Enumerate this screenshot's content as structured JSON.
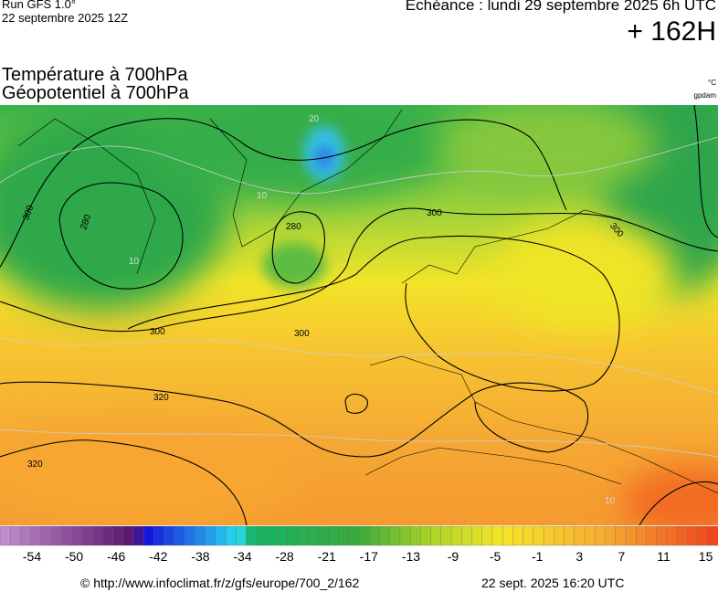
{
  "header": {
    "run": "Run GFS 1.0°",
    "date": "22 septembre 2025 12Z",
    "valid": "Echéance : lundi 29 septembre 2025 6h UTC",
    "lead": "+ 162H"
  },
  "titles": [
    "Température à 700hPa",
    "Géopotentiel à 700hPa"
  ],
  "units": [
    "°C",
    "gpdam"
  ],
  "map": {
    "contour_labels": [
      "300",
      "280",
      "280",
      "300",
      "300",
      "300",
      "300",
      "320",
      "320",
      "20",
      "10",
      "10",
      "10"
    ]
  },
  "colorbar": {
    "labels": [
      "-54",
      "-50",
      "-46",
      "-42",
      "-38",
      "-34",
      "-28",
      "-21",
      "-17",
      "-13",
      "-9",
      "-5",
      "-1",
      "3",
      "7",
      "11",
      "15"
    ]
  },
  "footer": {
    "url": "© http://www.infoclimat.fr/z/gfs/europe/700_2/162",
    "time": "22 sept. 2025 16:20 UTC"
  }
}
